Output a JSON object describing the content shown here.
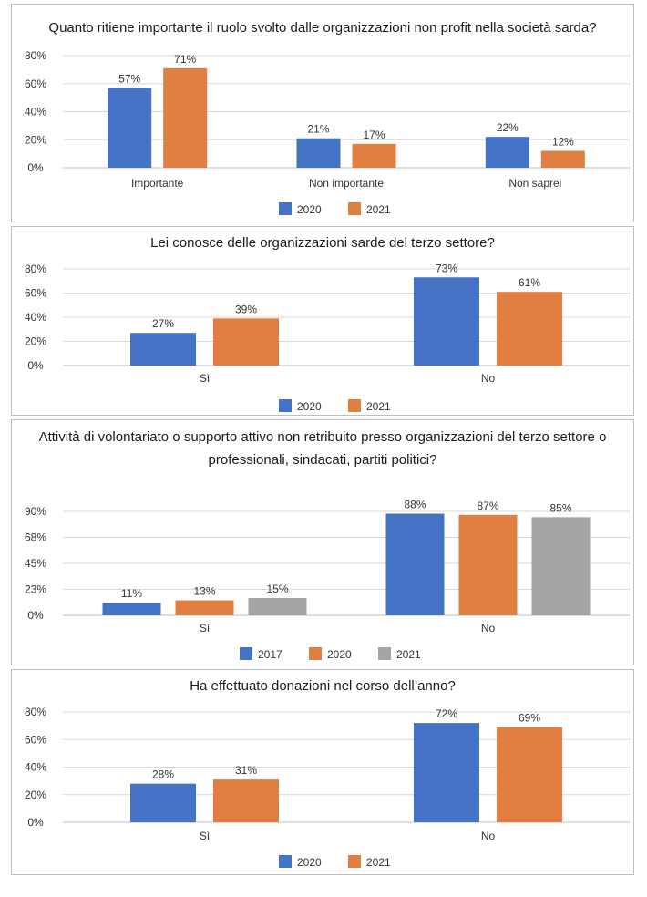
{
  "chart_data": [
    {
      "type": "bar",
      "title": "Quanto ritiene importante il ruolo svolto dalle organizzazioni non profit nella società sarda?",
      "categories": [
        "Importante",
        "Non importante",
        "Non saprei"
      ],
      "series": [
        {
          "name": "2020",
          "values": [
            57,
            21,
            22
          ],
          "labels": [
            "57%",
            "21%",
            "22%"
          ]
        },
        {
          "name": "2021",
          "values": [
            71,
            17,
            12
          ],
          "labels": [
            "71%",
            "17%",
            "12%"
          ]
        }
      ],
      "yticks": [
        "0%",
        "20%",
        "40%",
        "60%",
        "80%"
      ],
      "ylim": [
        0,
        80
      ],
      "xlabel": "",
      "ylabel": "",
      "legend": "bottom"
    },
    {
      "type": "bar",
      "title": "Lei conosce delle organizzazioni sarde del terzo settore?",
      "categories": [
        "Sì",
        "No"
      ],
      "series": [
        {
          "name": "2020",
          "values": [
            27,
            73
          ],
          "labels": [
            "27%",
            "73%"
          ]
        },
        {
          "name": "2021",
          "values": [
            39,
            61
          ],
          "labels": [
            "39%",
            "61%"
          ]
        }
      ],
      "yticks": [
        "0%",
        "20%",
        "40%",
        "60%",
        "80%"
      ],
      "ylim": [
        0,
        80
      ],
      "xlabel": "",
      "ylabel": "",
      "legend": "bottom"
    },
    {
      "type": "bar",
      "title": "Attività di volontariato o supporto attivo non retribuito presso organizzazioni del terzo settore o professionali, sindacati, partiti politici?",
      "categories": [
        "Sì",
        "No"
      ],
      "series": [
        {
          "name": "2017",
          "values": [
            11,
            88
          ],
          "labels": [
            "11%",
            "88%"
          ]
        },
        {
          "name": "2020",
          "values": [
            13,
            87
          ],
          "labels": [
            "13%",
            "87%"
          ]
        },
        {
          "name": "2021",
          "values": [
            15,
            85
          ],
          "labels": [
            "15%",
            "85%"
          ]
        }
      ],
      "yticks": [
        "0%",
        "23%",
        "45%",
        "68%",
        "90%"
      ],
      "ylim": [
        0,
        90
      ],
      "xlabel": "",
      "ylabel": "",
      "legend": "bottom"
    },
    {
      "type": "bar",
      "title": "Ha effettuato donazioni nel corso dell’anno?",
      "categories": [
        "Sì",
        "No"
      ],
      "series": [
        {
          "name": "2020",
          "values": [
            28,
            72
          ],
          "labels": [
            "28%",
            "72%"
          ]
        },
        {
          "name": "2021",
          "values": [
            31,
            69
          ],
          "labels": [
            "31%",
            "69%"
          ]
        }
      ],
      "yticks": [
        "0%",
        "20%",
        "40%",
        "60%",
        "80%"
      ],
      "ylim": [
        0,
        80
      ],
      "xlabel": "",
      "ylabel": "",
      "legend": "bottom"
    }
  ],
  "colors": {
    "2017": "#4472c4",
    "2020_two_series": "#4472c4",
    "2021_two_series": "#e07f41",
    "2020_three_series": "#e07f41",
    "2021_three_series": "#a5a5a5"
  }
}
